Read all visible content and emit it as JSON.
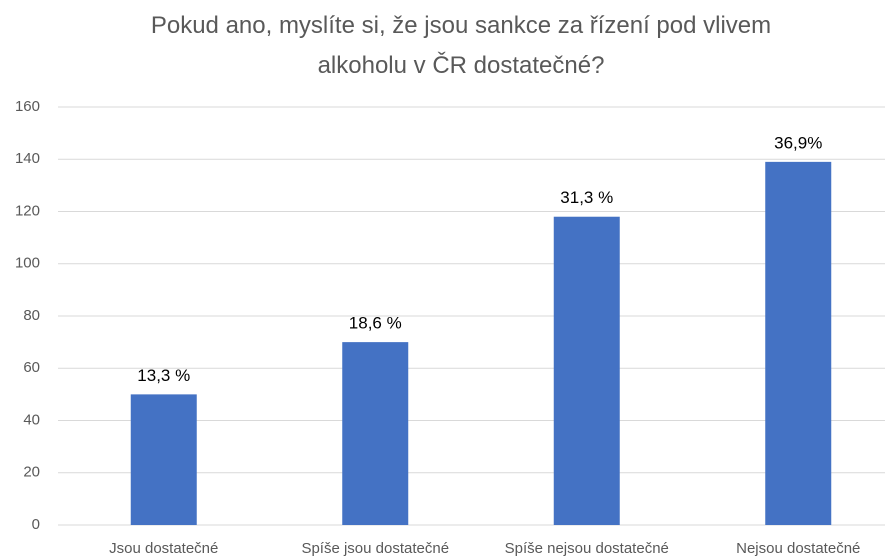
{
  "chart_data": {
    "type": "bar",
    "title": "Pokud ano, myslíte si, že jsou sankce za řízení pod vlivem alkoholu v ČR dostatečné?",
    "categories": [
      "Jsou dostatečné",
      "Spíše jsou dostatečné",
      "Spíše nejsou dostatečné",
      "Nejsou dostatečné"
    ],
    "values": [
      50,
      70,
      118,
      139
    ],
    "value_labels": [
      "13,3 %",
      "18,6 %",
      "31,3 %",
      "36,9%"
    ],
    "color": "#4472c4",
    "ylim": [
      0,
      160
    ],
    "yticks": [
      0,
      20,
      40,
      60,
      80,
      100,
      120,
      140,
      160
    ],
    "grid": true
  }
}
